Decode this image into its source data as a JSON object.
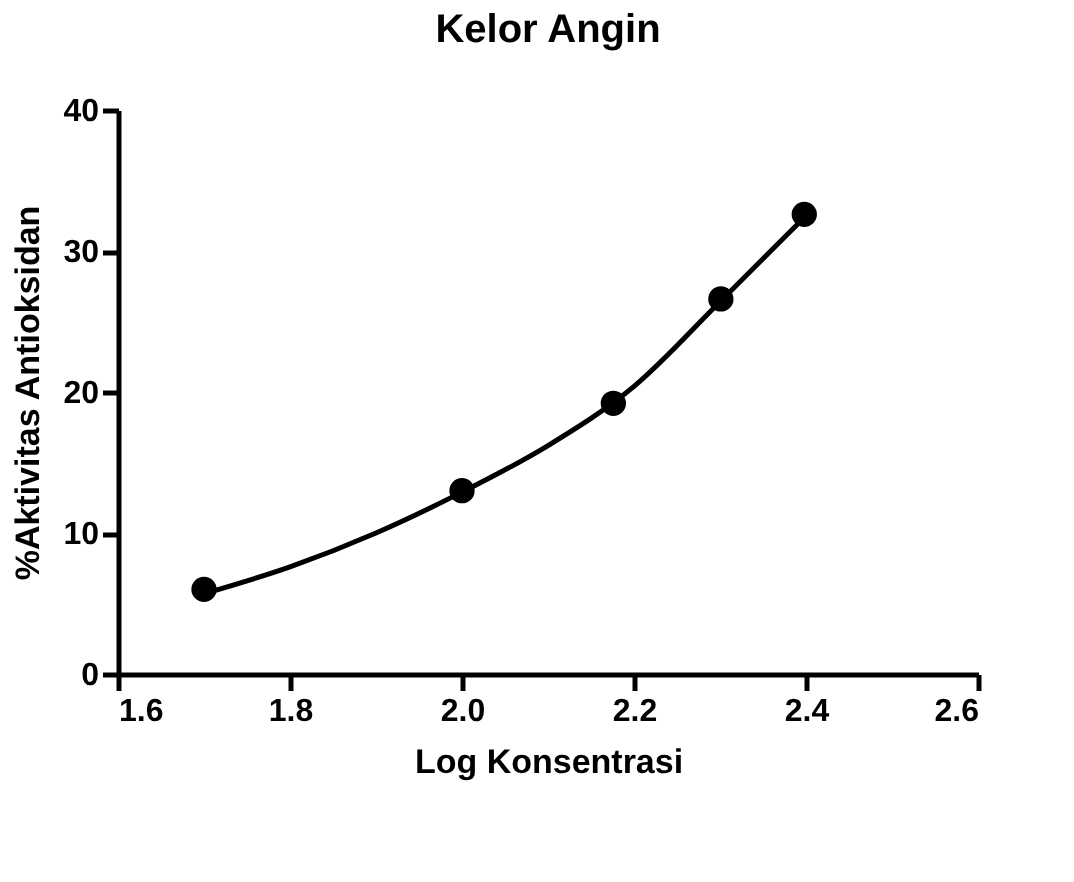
{
  "chart_data": {
    "type": "scatter",
    "title": "Kelor Angin",
    "xlabel": "Log Konsentrasi",
    "ylabel": "%Aktivitas Antioksidan",
    "x": [
      1.7,
      2.0,
      2.176,
      2.301,
      2.398
    ],
    "series": [
      {
        "color": "#000000",
        "marker": "circle",
        "values": [
          6.0,
          13.0,
          19.2,
          26.6,
          32.6
        ]
      },
      {
        "type": "line",
        "color": "#000000",
        "marker": "none",
        "line_style": "solid",
        "x": [
          1.7,
          1.8,
          1.9,
          2.0,
          2.1,
          2.2,
          2.3,
          2.4
        ],
        "values": [
          5.7,
          7.6,
          10.0,
          12.9,
          16.2,
          20.4,
          26.4,
          32.5
        ]
      }
    ],
    "xlim": [
      1.6,
      2.6
    ],
    "ylim": [
      0,
      40
    ],
    "xticks": [
      1.6,
      1.8,
      {
        "value": 2.0,
        "label": "2.0"
      },
      2.2,
      2.4,
      2.6
    ],
    "yticks": [
      0,
      10,
      20,
      30,
      40
    ],
    "grid": false
  }
}
